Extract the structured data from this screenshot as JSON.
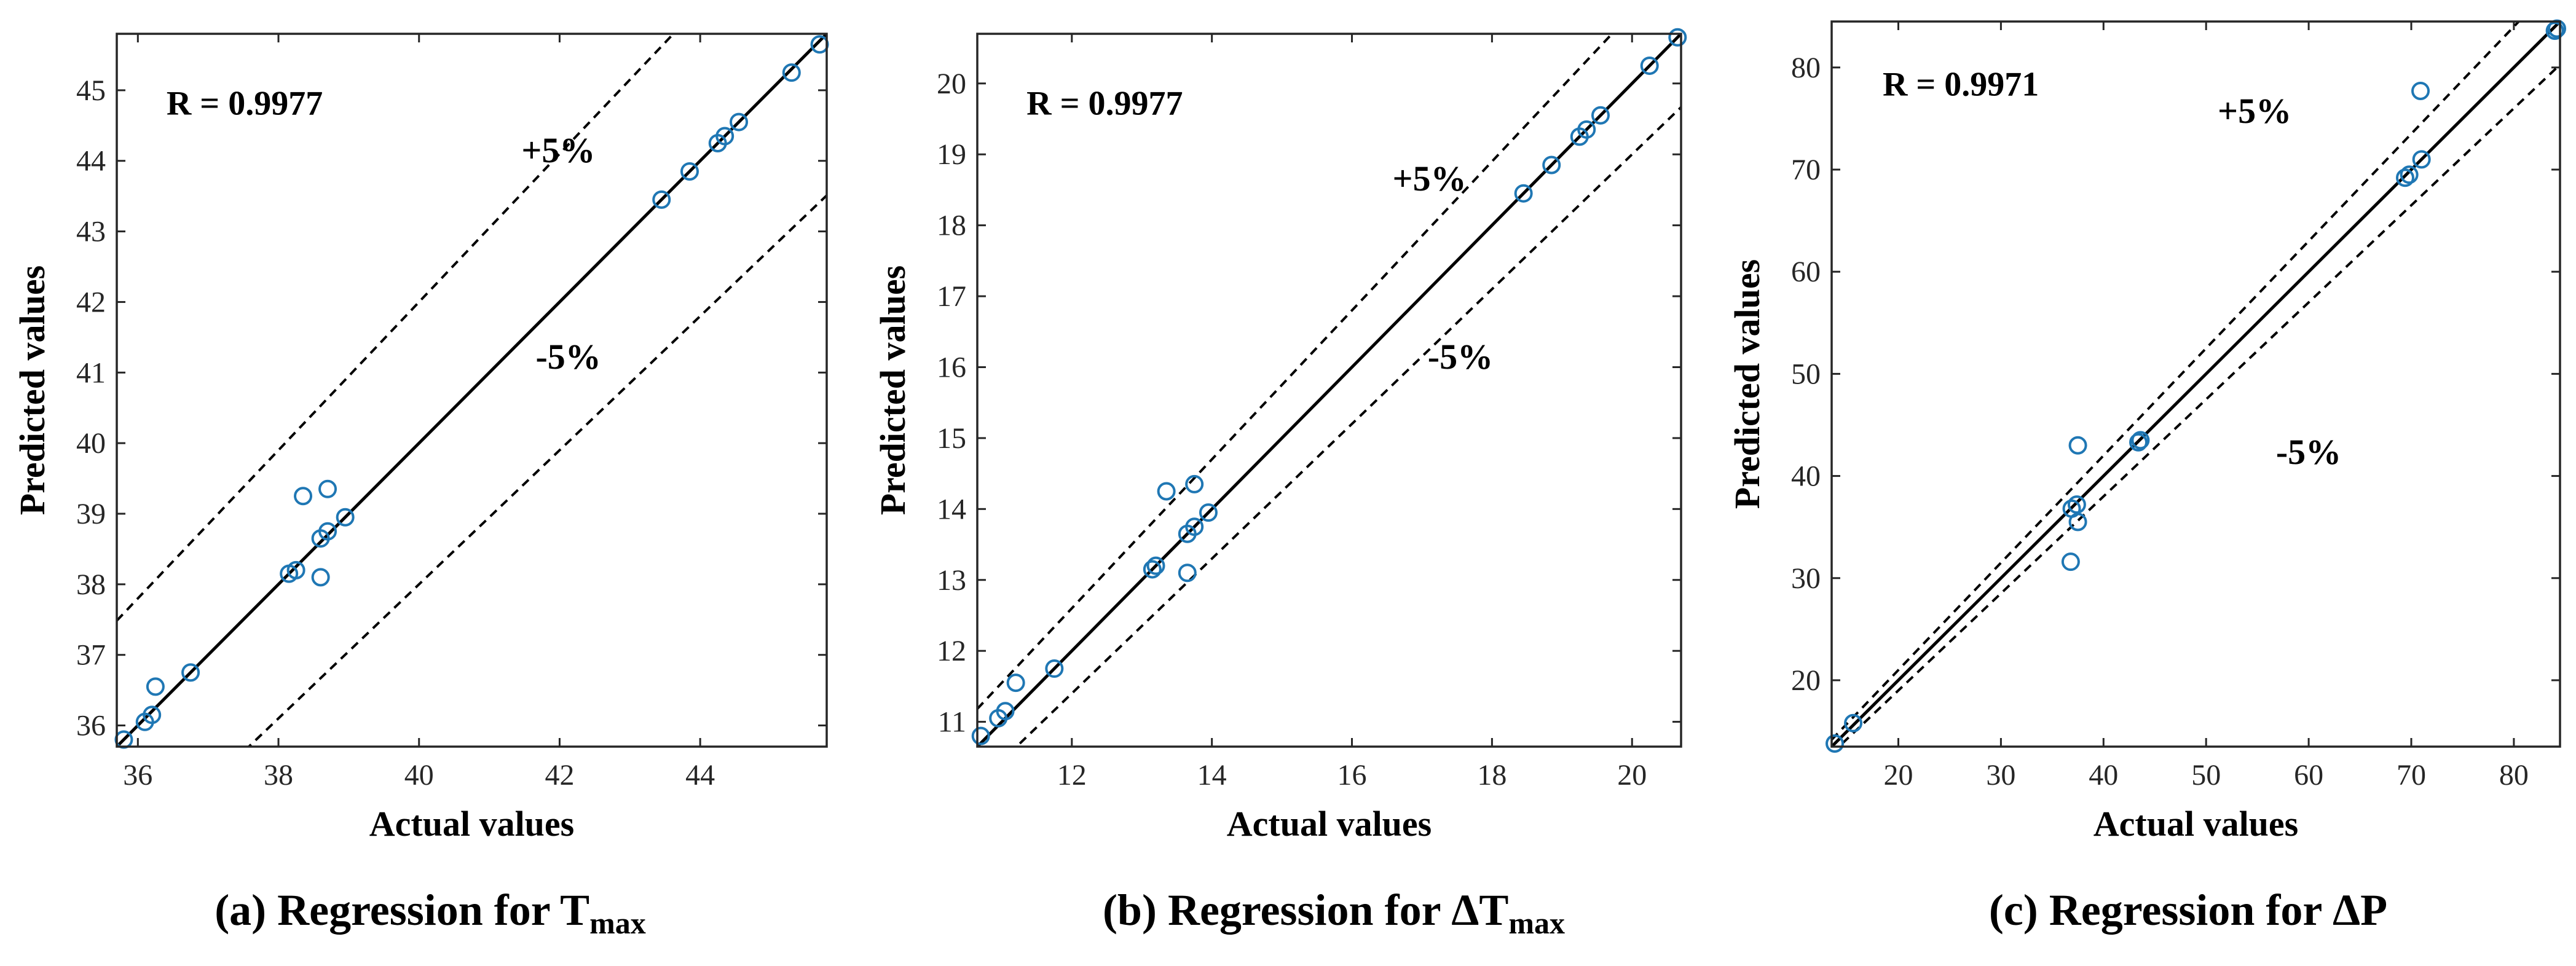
{
  "chart_data": [
    {
      "type": "scatter",
      "id": "a",
      "xlabel": "Actual values",
      "ylabel": "Predicted values",
      "annotation_r": "R = 0.9977",
      "band_upper_label": "+5%",
      "band_lower_label": "-5%",
      "caption_prefix": "(a) Regression for ",
      "caption_symbol": "T",
      "caption_sub": "max",
      "xlim": [
        35.7,
        45.8
      ],
      "ylim": [
        35.7,
        45.8
      ],
      "xticks": [
        36,
        38,
        40,
        42,
        44
      ],
      "yticks": [
        36,
        37,
        38,
        39,
        40,
        41,
        42,
        43,
        44,
        45
      ],
      "band_percent": 5,
      "points": [
        {
          "x": 35.8,
          "y": 35.8
        },
        {
          "x": 36.1,
          "y": 36.05
        },
        {
          "x": 36.2,
          "y": 36.15
        },
        {
          "x": 36.25,
          "y": 36.55
        },
        {
          "x": 36.75,
          "y": 36.75
        },
        {
          "x": 38.15,
          "y": 38.15
        },
        {
          "x": 38.25,
          "y": 38.2
        },
        {
          "x": 38.35,
          "y": 39.25
        },
        {
          "x": 38.6,
          "y": 38.1
        },
        {
          "x": 38.6,
          "y": 38.65
        },
        {
          "x": 38.7,
          "y": 38.75
        },
        {
          "x": 38.7,
          "y": 39.35
        },
        {
          "x": 38.95,
          "y": 38.95
        },
        {
          "x": 43.45,
          "y": 43.45
        },
        {
          "x": 43.85,
          "y": 43.85
        },
        {
          "x": 44.25,
          "y": 44.25
        },
        {
          "x": 44.35,
          "y": 44.35
        },
        {
          "x": 44.55,
          "y": 44.55
        },
        {
          "x": 45.3,
          "y": 45.25
        },
        {
          "x": 45.7,
          "y": 45.65
        }
      ]
    },
    {
      "type": "scatter",
      "id": "b",
      "xlabel": "Actual values",
      "ylabel": "Predicted values",
      "annotation_r": "R = 0.9977",
      "band_upper_label": "+5%",
      "band_lower_label": "-5%",
      "caption_prefix": "(b) Regression for ",
      "caption_symbol": "ΔT",
      "caption_sub": "max",
      "xlim": [
        10.65,
        20.7
      ],
      "ylim": [
        10.65,
        20.7
      ],
      "xticks": [
        12,
        14,
        16,
        18,
        20
      ],
      "yticks": [
        11,
        12,
        13,
        14,
        15,
        16,
        17,
        18,
        19,
        20
      ],
      "band_percent": 5,
      "points": [
        {
          "x": 10.7,
          "y": 10.8
        },
        {
          "x": 10.95,
          "y": 11.05
        },
        {
          "x": 11.05,
          "y": 11.15
        },
        {
          "x": 11.2,
          "y": 11.55
        },
        {
          "x": 11.75,
          "y": 11.75
        },
        {
          "x": 13.15,
          "y": 13.15
        },
        {
          "x": 13.2,
          "y": 13.2
        },
        {
          "x": 13.35,
          "y": 14.25
        },
        {
          "x": 13.65,
          "y": 13.1
        },
        {
          "x": 13.65,
          "y": 13.65
        },
        {
          "x": 13.75,
          "y": 13.75
        },
        {
          "x": 13.75,
          "y": 14.35
        },
        {
          "x": 13.95,
          "y": 13.95
        },
        {
          "x": 18.45,
          "y": 18.45
        },
        {
          "x": 18.85,
          "y": 18.85
        },
        {
          "x": 19.25,
          "y": 19.25
        },
        {
          "x": 19.35,
          "y": 19.35
        },
        {
          "x": 19.55,
          "y": 19.55
        },
        {
          "x": 20.25,
          "y": 20.25
        },
        {
          "x": 20.65,
          "y": 20.65
        }
      ]
    },
    {
      "type": "scatter",
      "id": "c",
      "xlabel": "Actual values",
      "ylabel": "Predicted values",
      "annotation_r": "R = 0.9971",
      "band_upper_label": "+5%",
      "band_lower_label": "-5%",
      "caption_prefix": "(c) Regression for ",
      "caption_symbol": "ΔP",
      "caption_sub": "",
      "xlim": [
        13.5,
        84.5
      ],
      "ylim": [
        13.5,
        84.5
      ],
      "xticks": [
        20,
        30,
        40,
        50,
        60,
        70,
        80
      ],
      "yticks": [
        20,
        30,
        40,
        50,
        60,
        70,
        80
      ],
      "band_percent": 5,
      "points": [
        {
          "x": 13.8,
          "y": 13.8
        },
        {
          "x": 15.6,
          "y": 15.8
        },
        {
          "x": 36.8,
          "y": 31.6
        },
        {
          "x": 36.9,
          "y": 36.8
        },
        {
          "x": 37.4,
          "y": 37.2
        },
        {
          "x": 37.5,
          "y": 35.5
        },
        {
          "x": 37.5,
          "y": 43.0
        },
        {
          "x": 43.4,
          "y": 43.3
        },
        {
          "x": 43.6,
          "y": 43.5
        },
        {
          "x": 69.4,
          "y": 69.2
        },
        {
          "x": 69.8,
          "y": 69.5
        },
        {
          "x": 70.9,
          "y": 77.7
        },
        {
          "x": 71.0,
          "y": 71.0
        },
        {
          "x": 84.0,
          "y": 83.6
        },
        {
          "x": 84.2,
          "y": 83.8
        }
      ]
    }
  ]
}
